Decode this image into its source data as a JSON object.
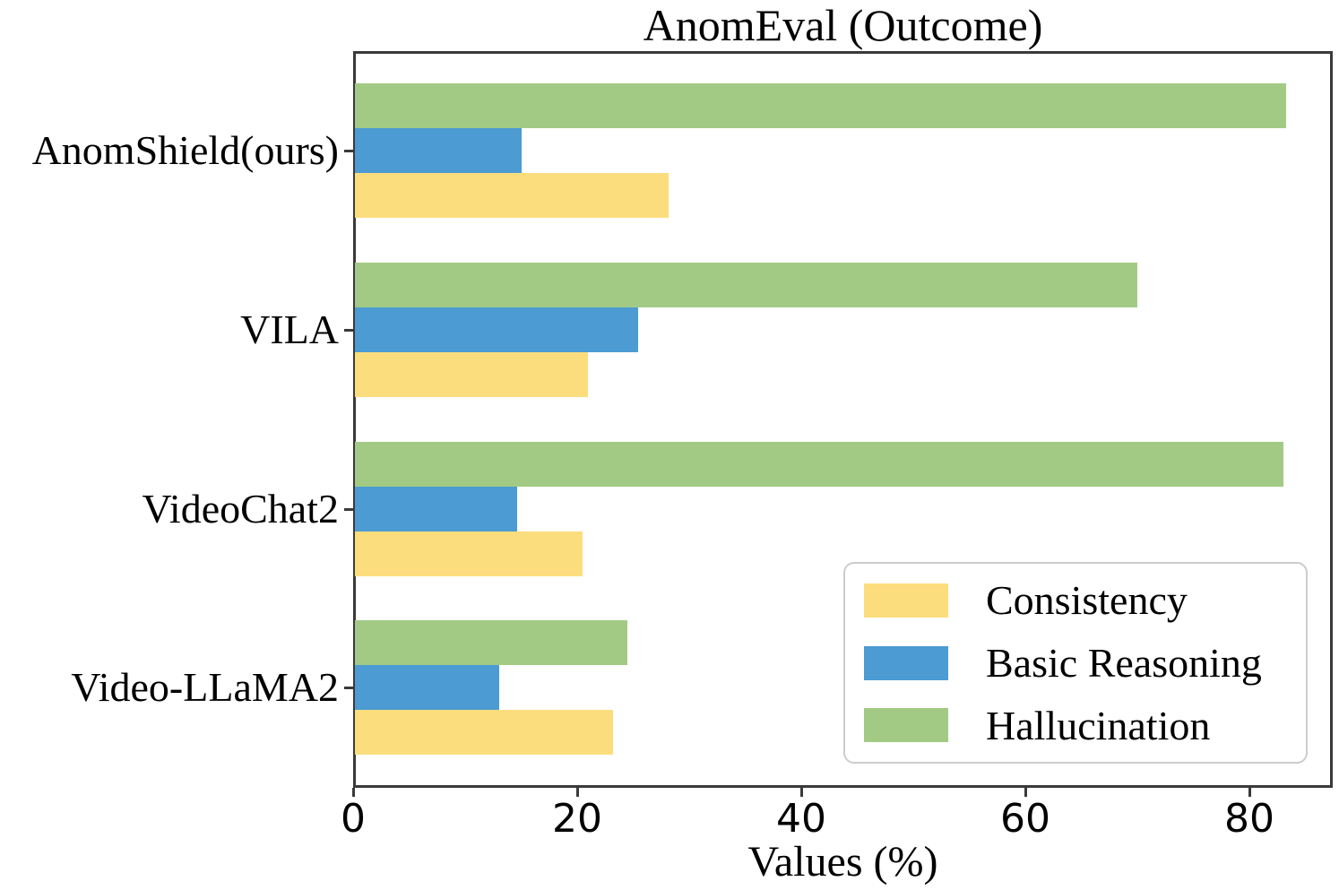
{
  "chart_data": {
    "type": "bar",
    "orientation": "horizontal",
    "title": "AnomEval (Outcome)",
    "xlabel": "Values (%)",
    "ylabel": "",
    "categories": [
      "AnomShield(ours)",
      "VILA",
      "VideoChat2",
      "Video-LLaMA2"
    ],
    "series": [
      {
        "name": "Hallucination",
        "color": "#a3ca84",
        "values": [
          83.1,
          69.8,
          82.9,
          24.3
        ]
      },
      {
        "name": "Basic Reasoning",
        "color": "#4c9bd3",
        "values": [
          14.9,
          25.3,
          14.5,
          12.9
        ]
      },
      {
        "name": "Consistency",
        "color": "#fcdd7d",
        "values": [
          28.0,
          20.8,
          20.3,
          23.0
        ]
      }
    ],
    "x_ticks": [
      0,
      20,
      40,
      60,
      80
    ],
    "xlim": [
      0,
      87.4
    ],
    "grid": false,
    "legend": {
      "position": "lower right",
      "entries": [
        "Consistency",
        "Basic Reasoning",
        "Hallucination"
      ]
    },
    "colors": {
      "spine": "#3a3a3a",
      "legend_border": "#cccccc",
      "text": "#000000"
    }
  }
}
